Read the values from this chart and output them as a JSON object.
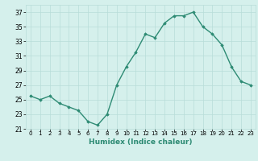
{
  "x": [
    0,
    1,
    2,
    3,
    4,
    5,
    6,
    7,
    8,
    9,
    10,
    11,
    12,
    13,
    14,
    15,
    16,
    17,
    18,
    19,
    20,
    21,
    22,
    23
  ],
  "y": [
    25.5,
    25.0,
    25.5,
    24.5,
    24.0,
    23.5,
    22.0,
    21.5,
    23.0,
    27.0,
    29.5,
    31.5,
    34.0,
    33.5,
    35.5,
    36.5,
    36.5,
    37.0,
    35.0,
    34.0,
    32.5,
    29.5,
    27.5,
    27.0
  ],
  "line_color": "#2e8b74",
  "bg_color": "#d5f0ec",
  "grid_color": "#b8ddd8",
  "xlabel": "Humidex (Indice chaleur)",
  "ylim": [
    21,
    38
  ],
  "yticks": [
    21,
    23,
    25,
    27,
    29,
    31,
    33,
    35,
    37
  ],
  "marker": "D",
  "marker_size": 1.8,
  "linewidth": 1.0
}
